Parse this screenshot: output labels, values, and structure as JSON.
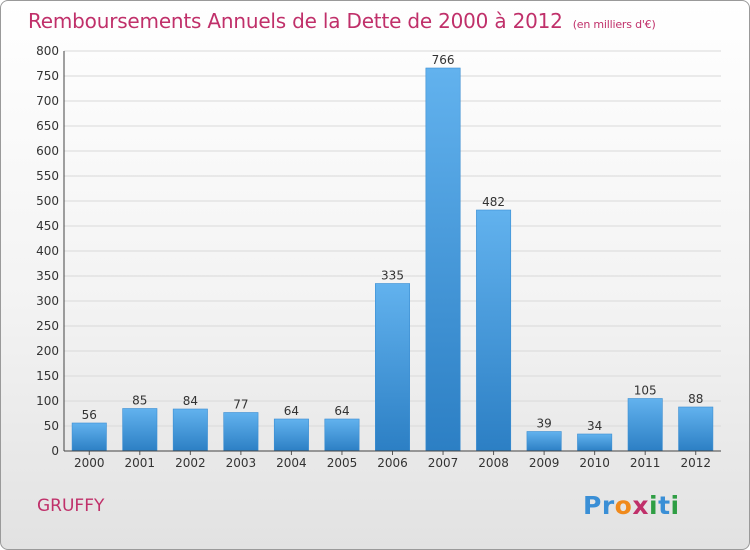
{
  "header": {
    "title": "Remboursements Annuels de la Dette de 2000 à 2012",
    "unit": "(en milliers d'€)"
  },
  "footer": {
    "commune": "GRUFFY",
    "logo": "Proxiti"
  },
  "colors": {
    "accent": "#c0306a",
    "bar_top": "#62b2ee",
    "bar_bottom": "#2c7fc4",
    "grid": "#d9d9d9"
  },
  "chart_data": {
    "type": "bar",
    "title": "Remboursements Annuels de la Dette de 2000 à 2012",
    "subtitle": "(en milliers d'€)",
    "categories": [
      "2000",
      "2001",
      "2002",
      "2003",
      "2004",
      "2005",
      "2006",
      "2007",
      "2008",
      "2009",
      "2010",
      "2011",
      "2012"
    ],
    "values": [
      56,
      85,
      84,
      77,
      64,
      64,
      335,
      766,
      482,
      39,
      34,
      105,
      88
    ],
    "ylim": [
      0,
      800
    ],
    "yticks": [
      0,
      50,
      100,
      150,
      200,
      250,
      300,
      350,
      400,
      450,
      500,
      550,
      600,
      650,
      700,
      750,
      800
    ],
    "grid": true,
    "xlabel": "",
    "ylabel": ""
  }
}
